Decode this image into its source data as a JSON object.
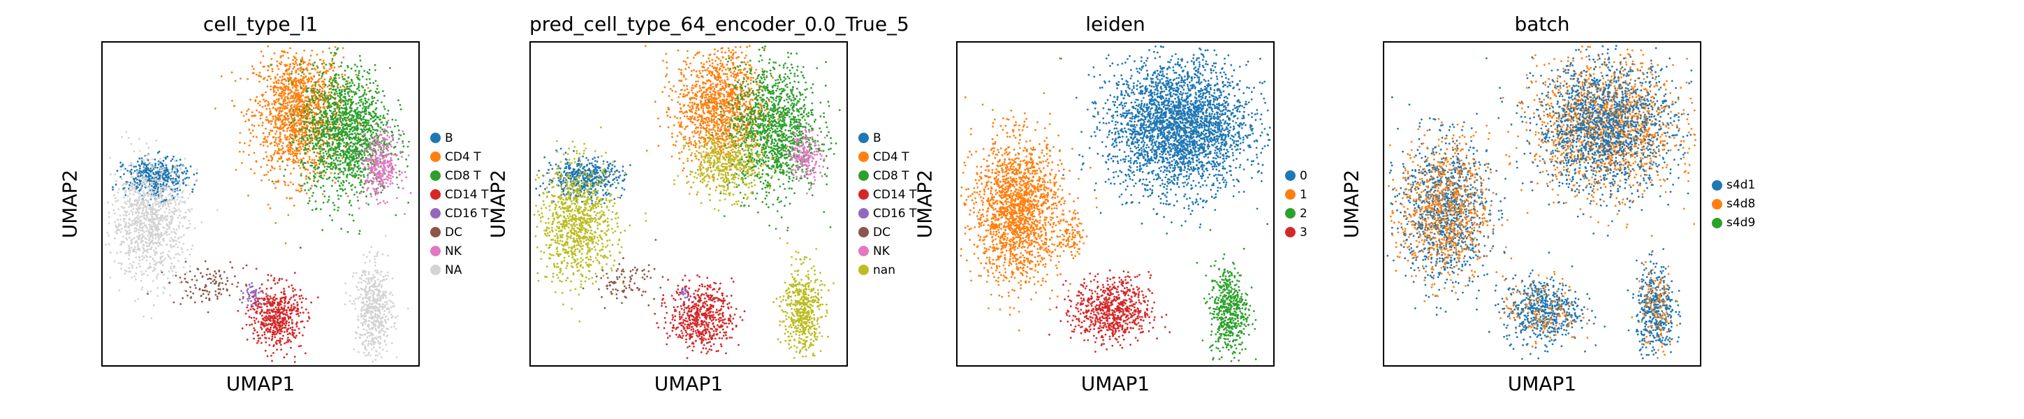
{
  "chart_data": [
    {
      "type": "scatter",
      "title": "cell_type_l1",
      "xlabel": "UMAP1",
      "ylabel": "UMAP2",
      "legend_position": "right",
      "categories": [
        "B",
        "CD4 T",
        "CD8 T",
        "CD14 T",
        "CD16 T",
        "DC",
        "NK",
        "NA"
      ],
      "colors": [
        "#1f77b4",
        "#ff7f0e",
        "#2ca02c",
        "#d62728",
        "#9467bd",
        "#8c564b",
        "#e377c2",
        "#d3d3d3"
      ],
      "clusters": [
        {
          "label": "CD4 T",
          "x": 0.62,
          "y": 0.78,
          "sx": 0.07,
          "sy": 0.1,
          "n": 1500
        },
        {
          "label": "CD8 T",
          "x": 0.77,
          "y": 0.72,
          "sx": 0.07,
          "sy": 0.1,
          "n": 1500
        },
        {
          "label": "NK",
          "x": 0.88,
          "y": 0.62,
          "sx": 0.03,
          "sy": 0.05,
          "n": 320
        },
        {
          "label": "B",
          "x": 0.17,
          "y": 0.58,
          "sx": 0.05,
          "sy": 0.03,
          "n": 420
        },
        {
          "label": "NA",
          "x": 0.15,
          "y": 0.45,
          "sx": 0.06,
          "sy": 0.09,
          "n": 1000
        },
        {
          "label": "NA",
          "x": 0.86,
          "y": 0.17,
          "sx": 0.03,
          "sy": 0.07,
          "n": 520
        },
        {
          "label": "DC",
          "x": 0.33,
          "y": 0.25,
          "sx": 0.06,
          "sy": 0.03,
          "n": 110
        },
        {
          "label": "CD16 T",
          "x": 0.48,
          "y": 0.22,
          "sx": 0.015,
          "sy": 0.02,
          "n": 60
        },
        {
          "label": "CD14 T",
          "x": 0.55,
          "y": 0.15,
          "sx": 0.04,
          "sy": 0.05,
          "n": 520
        }
      ]
    },
    {
      "type": "scatter",
      "title": "pred_cell_type_64_encoder_0.0_True_5",
      "xlabel": "UMAP1",
      "ylabel": "UMAP2",
      "legend_position": "right",
      "categories": [
        "B",
        "CD4 T",
        "CD8 T",
        "CD14 T",
        "CD16 T",
        "DC",
        "NK",
        "nan"
      ],
      "colors": [
        "#1f77b4",
        "#ff7f0e",
        "#2ca02c",
        "#d62728",
        "#9467bd",
        "#8c564b",
        "#e377c2",
        "#bcbd22"
      ],
      "clusters": [
        {
          "label": "CD4 T",
          "x": 0.6,
          "y": 0.8,
          "sx": 0.07,
          "sy": 0.09,
          "n": 1300
        },
        {
          "label": "CD8 T",
          "x": 0.77,
          "y": 0.73,
          "sx": 0.07,
          "sy": 0.1,
          "n": 1300
        },
        {
          "label": "nan",
          "x": 0.62,
          "y": 0.62,
          "sx": 0.06,
          "sy": 0.05,
          "n": 450
        },
        {
          "label": "NK",
          "x": 0.87,
          "y": 0.65,
          "sx": 0.025,
          "sy": 0.04,
          "n": 180
        },
        {
          "label": "B",
          "x": 0.17,
          "y": 0.58,
          "sx": 0.06,
          "sy": 0.03,
          "n": 450
        },
        {
          "label": "nan",
          "x": 0.15,
          "y": 0.44,
          "sx": 0.06,
          "sy": 0.09,
          "n": 950
        },
        {
          "label": "nan",
          "x": 0.86,
          "y": 0.17,
          "sx": 0.03,
          "sy": 0.07,
          "n": 520
        },
        {
          "label": "DC",
          "x": 0.3,
          "y": 0.26,
          "sx": 0.05,
          "sy": 0.03,
          "n": 90
        },
        {
          "label": "CD16 T",
          "x": 0.49,
          "y": 0.22,
          "sx": 0.012,
          "sy": 0.015,
          "n": 25
        },
        {
          "label": "CD14 T",
          "x": 0.54,
          "y": 0.15,
          "sx": 0.05,
          "sy": 0.05,
          "n": 560
        }
      ]
    },
    {
      "type": "scatter",
      "title": "leiden",
      "xlabel": "UMAP1",
      "ylabel": "UMAP2",
      "legend_position": "right",
      "categories": [
        "0",
        "1",
        "2",
        "3"
      ],
      "colors": [
        "#1f77b4",
        "#ff7f0e",
        "#2ca02c",
        "#d62728"
      ],
      "clusters": [
        {
          "label": "0",
          "x": 0.7,
          "y": 0.74,
          "sx": 0.11,
          "sy": 0.1,
          "n": 3000
        },
        {
          "label": "1",
          "x": 0.19,
          "y": 0.48,
          "sx": 0.07,
          "sy": 0.11,
          "n": 1800
        },
        {
          "label": "1",
          "x": 0.36,
          "y": 0.4,
          "sx": 0.02,
          "sy": 0.03,
          "n": 80
        },
        {
          "label": "3",
          "x": 0.49,
          "y": 0.17,
          "sx": 0.06,
          "sy": 0.05,
          "n": 700
        },
        {
          "label": "2",
          "x": 0.86,
          "y": 0.17,
          "sx": 0.03,
          "sy": 0.07,
          "n": 520
        }
      ]
    },
    {
      "type": "scatter",
      "title": "batch",
      "xlabel": "UMAP1",
      "ylabel": "UMAP2",
      "legend_position": "right",
      "categories": [
        "s4d1",
        "s4d8",
        "s4d9"
      ],
      "colors": [
        "#1f77b4",
        "#ff7f0e",
        "#2ca02c"
      ],
      "clusters": [
        {
          "label": "s4d8",
          "x": 0.7,
          "y": 0.74,
          "sx": 0.11,
          "sy": 0.1,
          "n": 1500
        },
        {
          "label": "s4d1",
          "x": 0.7,
          "y": 0.74,
          "sx": 0.11,
          "sy": 0.1,
          "n": 1500
        },
        {
          "label": "s4d1",
          "x": 0.19,
          "y": 0.48,
          "sx": 0.07,
          "sy": 0.11,
          "n": 1000
        },
        {
          "label": "s4d8",
          "x": 0.19,
          "y": 0.48,
          "sx": 0.07,
          "sy": 0.11,
          "n": 800
        },
        {
          "label": "s4d1",
          "x": 0.5,
          "y": 0.17,
          "sx": 0.06,
          "sy": 0.05,
          "n": 550
        },
        {
          "label": "s4d8",
          "x": 0.5,
          "y": 0.17,
          "sx": 0.06,
          "sy": 0.05,
          "n": 150
        },
        {
          "label": "s4d1",
          "x": 0.86,
          "y": 0.17,
          "sx": 0.03,
          "sy": 0.07,
          "n": 420
        },
        {
          "label": "s4d8",
          "x": 0.86,
          "y": 0.17,
          "sx": 0.03,
          "sy": 0.07,
          "n": 120
        }
      ]
    }
  ]
}
